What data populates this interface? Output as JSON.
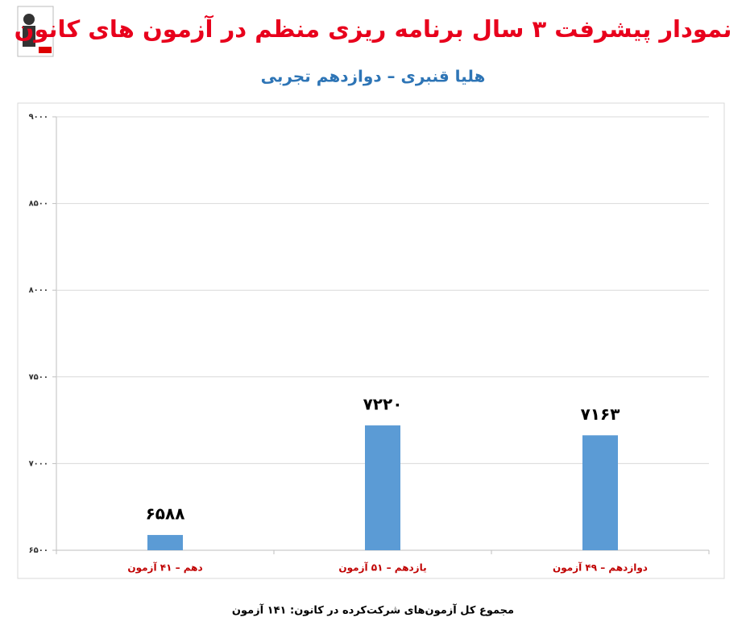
{
  "chart_data": {
    "type": "bar",
    "title": "نمودار پیشرفت ۳ سال برنامه ریزی منظم در آزمون های کانون",
    "subtitle": "هلیا قنبری – دوازدهم تجربی",
    "categories": [
      "دهم – ۴۱ آزمون",
      "یازدهم – ۵۱ آزمون",
      "دوازدهم – ۴۹ آزمون"
    ],
    "values": [
      6588,
      7220,
      7163
    ],
    "value_labels": [
      "۶۵۸۸",
      "۷۲۲۰",
      "۷۱۶۳"
    ],
    "color": "#5b9bd5",
    "ylim": [
      6500,
      9000
    ],
    "yticks": [
      {
        "value": 6500,
        "label": "۶۵۰۰"
      },
      {
        "value": 7000,
        "label": "۷۰۰۰"
      },
      {
        "value": 7500,
        "label": "۷۵۰۰"
      },
      {
        "value": 8000,
        "label": "۸۰۰۰"
      },
      {
        "value": 8500,
        "label": "۸۵۰۰"
      },
      {
        "value": 9000,
        "label": "۹۰۰۰"
      }
    ],
    "grid": true,
    "footnote": "مجموع کل آزمون‌های شرکت‌کرده در کانون: ۱۴۱ آزمون"
  }
}
